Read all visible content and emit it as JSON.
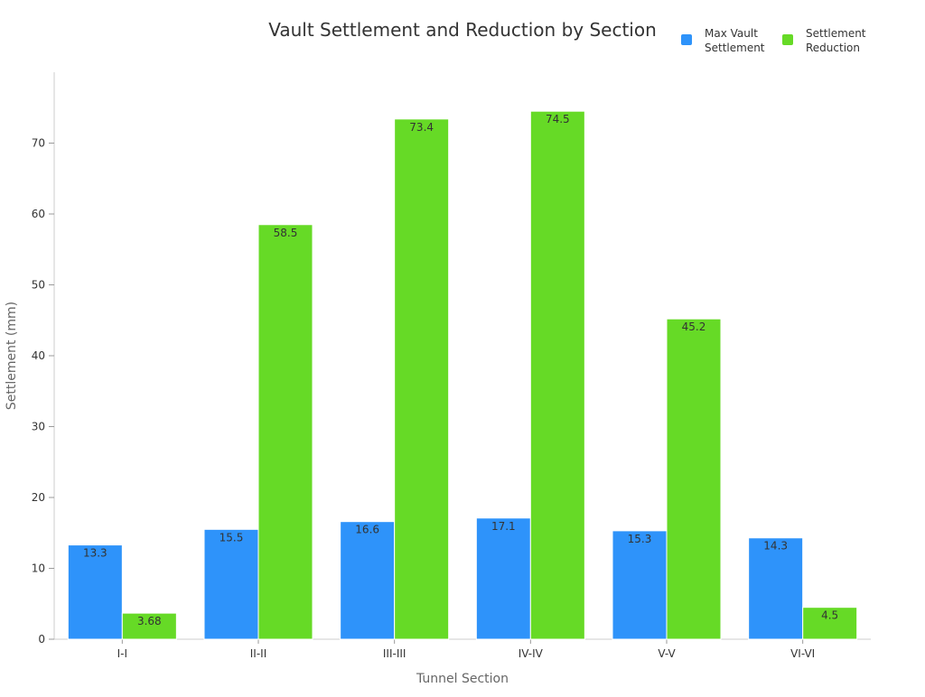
{
  "chart_data": {
    "type": "bar",
    "title": "Vault Settlement and Reduction by Section",
    "xlabel": "Tunnel Section",
    "ylabel": "Settlement (mm)",
    "categories": [
      "I-I",
      "II-II",
      "III-III",
      "IV-IV",
      "V-V",
      "VI-VI"
    ],
    "series": [
      {
        "name": "Max Vault Settlement",
        "legend_lines": [
          "Max Vault",
          "Settlement"
        ],
        "color": "#2e93fa",
        "values": [
          13.3,
          15.5,
          16.6,
          17.1,
          15.3,
          14.3
        ],
        "labels": [
          "13.3",
          "15.5",
          "16.6",
          "17.1",
          "15.3",
          "14.3"
        ]
      },
      {
        "name": "Settlement Reduction",
        "legend_lines": [
          "Settlement",
          "Reduction"
        ],
        "color": "#66da26",
        "values": [
          3.68,
          58.5,
          73.4,
          74.5,
          45.2,
          4.5
        ],
        "labels": [
          "3.68",
          "58.5",
          "73.4",
          "74.5",
          "45.2",
          "4.5"
        ]
      }
    ],
    "ylim": [
      0,
      80
    ],
    "yticks": [
      0,
      10,
      20,
      30,
      40,
      50,
      60,
      70
    ],
    "grid": false,
    "legend_position": "top-right"
  }
}
